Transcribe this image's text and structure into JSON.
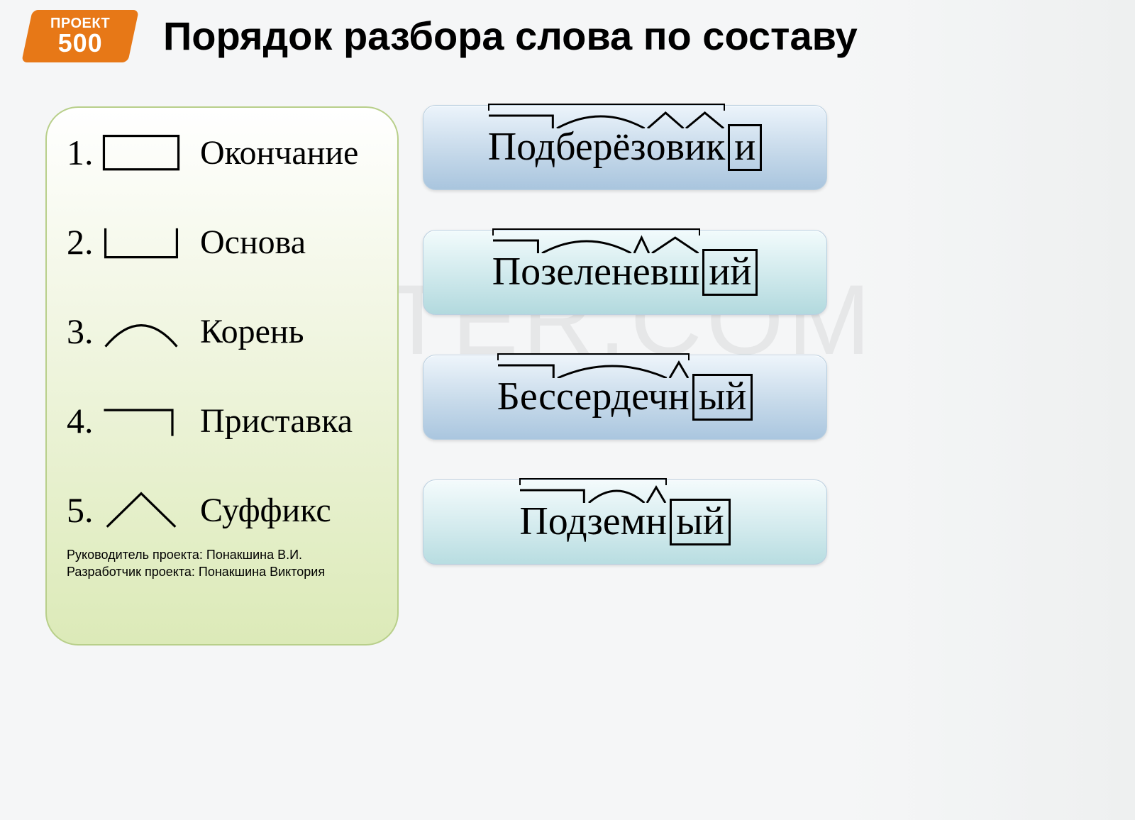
{
  "logo": {
    "line1": "ПРОЕКТ",
    "line2": "500",
    "bg": "#e77817",
    "fg": "#ffffff"
  },
  "title": "Порядок разбора слова по составу",
  "watermark": "DIPOSTER.COM",
  "legend": {
    "items": [
      {
        "num": "1.",
        "label": "Окончание",
        "symbol": "ending"
      },
      {
        "num": "2.",
        "label": "Основа",
        "symbol": "base"
      },
      {
        "num": "3.",
        "label": "Корень",
        "symbol": "root"
      },
      {
        "num": "4.",
        "label": "Приставка",
        "symbol": "prefix"
      },
      {
        "num": "5.",
        "label": "Суффикс",
        "symbol": "suffix"
      }
    ]
  },
  "credits": {
    "line1": "Руководитель проекта: Понакшина В.И.",
    "line2": "Разработчик проекта: Понакшина Виктория"
  },
  "styling": {
    "page_bg": "#f5f6f7",
    "panel_border": "#b8cf8a",
    "panel_gradient": [
      "#ffffff",
      "#f3f7e6",
      "#dceab8"
    ],
    "button_border": "#b9cfe0",
    "button_gradients": [
      [
        "#ecf4fb",
        "#c6d9ea",
        "#a9c5de"
      ],
      [
        "#f2fbfc",
        "#cfe9ec",
        "#b2d9de"
      ],
      [
        "#eef5fb",
        "#c7daea",
        "#aac6df"
      ],
      [
        "#f4fbfc",
        "#d4ebee",
        "#b8dde1"
      ]
    ],
    "title_fontsize": 56,
    "legend_fontsize": 48,
    "word_fontsize": 56,
    "credits_fontsize": 18,
    "stroke_color": "#000000",
    "stroke_width": 3
  },
  "examples": [
    {
      "segments": [
        {
          "text": "Под",
          "mark": "prefix"
        },
        {
          "text": "берёз",
          "mark": "root"
        },
        {
          "text": "ов",
          "mark": "suffix"
        },
        {
          "text": "ик",
          "mark": "suffix"
        }
      ],
      "ending": "и",
      "base_covers_all": true
    },
    {
      "segments": [
        {
          "text": "По",
          "mark": "prefix"
        },
        {
          "text": "зелен",
          "mark": "root"
        },
        {
          "text": "е",
          "mark": "suffix"
        },
        {
          "text": "вш",
          "mark": "suffix"
        }
      ],
      "ending": "ий",
      "base_covers_all": true
    },
    {
      "segments": [
        {
          "text": "Бес",
          "mark": "prefix"
        },
        {
          "text": "сердеч",
          "mark": "root"
        },
        {
          "text": "н",
          "mark": "suffix"
        }
      ],
      "ending": "ый",
      "base_covers_all": true
    },
    {
      "segments": [
        {
          "text": "Под",
          "mark": "prefix"
        },
        {
          "text": "зем",
          "mark": "root"
        },
        {
          "text": "н",
          "mark": "suffix"
        }
      ],
      "ending": "ый",
      "base_covers_all": true
    }
  ]
}
